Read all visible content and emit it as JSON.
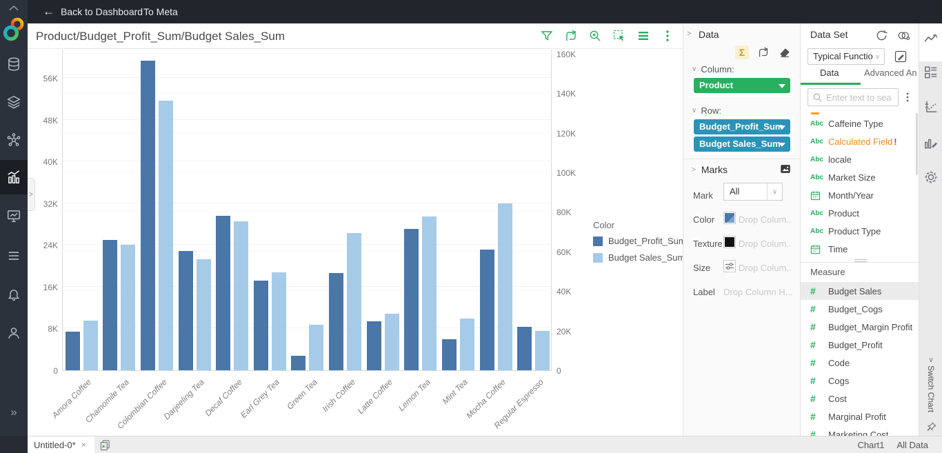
{
  "topbar": {
    "back": "Back to Dashboard",
    "to_meta": "To Meta"
  },
  "chart": {
    "title": "Product/Budget_Profit_Sum/Budget Sales_Sum"
  },
  "legend": {
    "title": "Color"
  },
  "chart_data": {
    "type": "bar",
    "title": "Product/Budget_Profit_Sum/Budget Sales_Sum",
    "categories": [
      "Amora Coffee",
      "Chamomile Tea",
      "Colombian Coffee",
      "Darjeeling Tea",
      "Decaf Coffee",
      "Earl Grey Tea",
      "Green Tea",
      "Irish Coffee",
      "Latte Coffee",
      "Lemon Tea",
      "Mint Tea",
      "Mocha Coffee",
      "Regular Espresso"
    ],
    "series": [
      {
        "name": "Budget_Profit_Sum",
        "axis": "left",
        "color": "#4a76a8",
        "values": [
          7400,
          25000,
          59300,
          22900,
          29600,
          17200,
          2800,
          18700,
          9400,
          27100,
          6000,
          23200,
          8300
        ]
      },
      {
        "name": "Budget Sales_Sum",
        "axis": "right",
        "color": "#a5cbe9",
        "values": [
          25100,
          63400,
          136100,
          56200,
          75300,
          49500,
          22900,
          69200,
          28600,
          77600,
          26000,
          84300,
          20000
        ]
      }
    ],
    "left_axis": {
      "ticks": [
        0,
        8000,
        16000,
        24000,
        32000,
        40000,
        48000,
        56000
      ],
      "max": 61600
    },
    "right_axis": {
      "ticks": [
        0,
        20000,
        40000,
        60000,
        80000,
        100000,
        120000,
        140000,
        160000
      ],
      "max": 162400
    },
    "x_label_rotation": -45,
    "grid": true,
    "legend_position": "right"
  },
  "data_panel": {
    "title": "Data",
    "column_label": "Column:",
    "row_label": "Row:",
    "column_pills": [
      "Product"
    ],
    "row_pills": [
      "Budget_Profit_Sum",
      "Budget Sales_Sum"
    ],
    "marks": {
      "title": "Marks",
      "mark_label": "Mark",
      "mark_value": "All",
      "color_label": "Color",
      "texture_label": "Texture",
      "size_label": "Size",
      "label_label": "Label",
      "drop_placeholder": "Drop Colum...",
      "drop_placeholder_long": "Drop Column H..."
    }
  },
  "dataset_panel": {
    "title": "Data Set",
    "dataset_value": "Typical Functio",
    "tabs": [
      "Data",
      "Advanced An..."
    ],
    "search_placeholder": "Enter text to sea",
    "attributes": [
      {
        "label": "Caffeine Type",
        "icon": "abc"
      },
      {
        "label": "Calculated Field",
        "icon": "abc",
        "error": true
      },
      {
        "label": "locale",
        "icon": "abc"
      },
      {
        "label": "Market Size",
        "icon": "abc"
      },
      {
        "label": "Month/Year",
        "icon": "calendar"
      },
      {
        "label": "Product",
        "icon": "abc"
      },
      {
        "label": "Product Type",
        "icon": "abc"
      },
      {
        "label": "Time",
        "icon": "calendar"
      }
    ],
    "measure_header": "Measure",
    "measures": [
      "Budget Sales",
      "Budget_Cogs",
      "Budget_Margin Profit",
      "Budget_Profit",
      "Code",
      "Cogs",
      "Cost",
      "Marginal Profit",
      "Marketing Cost"
    ],
    "selected_measure": "Budget Sales"
  },
  "right_strip": {
    "switch_chart": "Switch Chart"
  },
  "bottom_bar": {
    "tab": "Untitled-0*",
    "chart_tab": "Chart1",
    "all_data_tab": "All Data"
  },
  "icons": {
    "sigma": "Σ",
    "back_arrow": "←",
    "double_chevron_right": "»",
    "close": "×",
    "chevron_down": "∨",
    "chevron_right": ">",
    "chevron_up": "^",
    "error": "!"
  },
  "colors": {
    "accent_green": "#27ae60",
    "pill_green": "#27b05f",
    "pill_teal": "#2b93b7",
    "bar_dark": "#4a76a8",
    "bar_light": "#a5cbe9"
  }
}
